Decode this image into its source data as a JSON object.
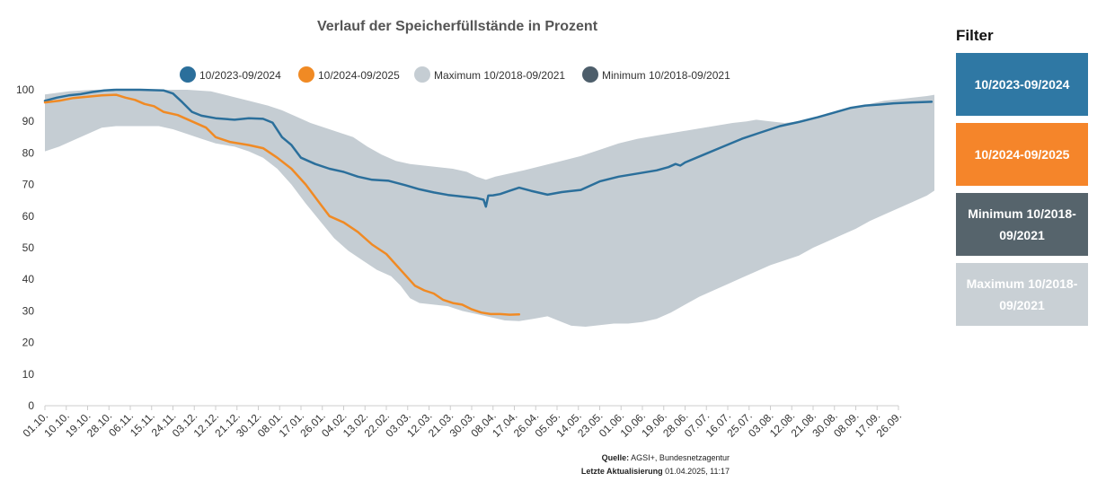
{
  "chart_data": {
    "type": "line",
    "title": "Verlauf der Speicherfüllstände in Prozent",
    "ylim": [
      0,
      100
    ],
    "yticks": [
      0,
      10,
      20,
      30,
      40,
      50,
      60,
      70,
      80,
      90,
      100
    ],
    "x_tick_labels": [
      "01.10.",
      "10.10.",
      "19.10.",
      "28.10.",
      "06.11.",
      "15.11.",
      "24.11.",
      "03.12.",
      "12.12.",
      "21.12.",
      "30.12.",
      "08.01.",
      "17.01.",
      "26.01.",
      "04.02.",
      "13.02.",
      "22.02.",
      "03.03.",
      "12.03.",
      "21.03.",
      "30.03.",
      "08.04.",
      "17.04.",
      "26.04.",
      "05.05.",
      "14.05.",
      "23.05.",
      "01.06.",
      "10.06.",
      "19.06.",
      "28.06.",
      "07.07.",
      "16.07.",
      "25.07.",
      "03.08.",
      "12.08.",
      "21.08.",
      "30.08.",
      "08.09.",
      "17.09.",
      "26.09."
    ],
    "x_unit": "day of gas year (0 = 01.10.)",
    "legend_position": "top",
    "series": [
      {
        "name": "10/2023-09/2024",
        "color": "#2b6f9b",
        "style": "line",
        "points": [
          [
            0,
            96.5
          ],
          [
            5,
            97.5
          ],
          [
            10,
            98.2
          ],
          [
            15,
            98.6
          ],
          [
            20,
            99.3
          ],
          [
            25,
            99.8
          ],
          [
            30,
            100
          ],
          [
            40,
            100
          ],
          [
            50,
            99.8
          ],
          [
            54,
            98.8
          ],
          [
            58,
            96
          ],
          [
            62,
            93
          ],
          [
            66,
            91.8
          ],
          [
            72,
            91
          ],
          [
            80,
            90.5
          ],
          [
            86,
            91
          ],
          [
            92,
            90.8
          ],
          [
            96,
            89.6
          ],
          [
            100,
            85
          ],
          [
            104,
            82.5
          ],
          [
            108,
            78.5
          ],
          [
            114,
            76.5
          ],
          [
            120,
            75
          ],
          [
            126,
            74
          ],
          [
            132,
            72.5
          ],
          [
            138,
            71.5
          ],
          [
            145,
            71.2
          ],
          [
            152,
            69.8
          ],
          [
            158,
            68.5
          ],
          [
            164,
            67.5
          ],
          [
            170,
            66.7
          ],
          [
            176,
            66.2
          ],
          [
            182,
            65.7
          ],
          [
            185,
            65.2
          ],
          [
            186,
            63
          ],
          [
            187,
            66.5
          ],
          [
            189,
            66.6
          ],
          [
            192,
            67
          ],
          [
            196,
            68
          ],
          [
            200,
            69
          ],
          [
            205,
            68
          ],
          [
            212,
            66.8
          ],
          [
            218,
            67.6
          ],
          [
            226,
            68.3
          ],
          [
            234,
            71
          ],
          [
            242,
            72.5
          ],
          [
            250,
            73.5
          ],
          [
            258,
            74.5
          ],
          [
            263,
            75.5
          ],
          [
            266,
            76.5
          ],
          [
            268,
            76
          ],
          [
            270,
            77
          ],
          [
            278,
            79.5
          ],
          [
            286,
            82
          ],
          [
            294,
            84.5
          ],
          [
            302,
            86.5
          ],
          [
            310,
            88.5
          ],
          [
            318,
            89.8
          ],
          [
            326,
            91.3
          ],
          [
            334,
            93
          ],
          [
            340,
            94.3
          ],
          [
            346,
            95
          ],
          [
            352,
            95.3
          ],
          [
            358,
            95.7
          ],
          [
            366,
            96
          ],
          [
            374,
            96.2
          ]
        ]
      },
      {
        "name": "10/2024-09/2025",
        "color": "#f08a24",
        "style": "line",
        "points": [
          [
            0,
            96
          ],
          [
            6,
            96.5
          ],
          [
            12,
            97.4
          ],
          [
            18,
            97.8
          ],
          [
            24,
            98.2
          ],
          [
            30,
            98.4
          ],
          [
            34,
            97.5
          ],
          [
            38,
            96.8
          ],
          [
            42,
            95.5
          ],
          [
            46,
            94.8
          ],
          [
            50,
            93
          ],
          [
            56,
            92
          ],
          [
            62,
            90
          ],
          [
            68,
            88
          ],
          [
            72,
            85
          ],
          [
            78,
            83.5
          ],
          [
            86,
            82.5
          ],
          [
            92,
            81.5
          ],
          [
            98,
            78.5
          ],
          [
            104,
            75
          ],
          [
            110,
            70
          ],
          [
            116,
            64
          ],
          [
            120,
            60
          ],
          [
            126,
            58
          ],
          [
            132,
            55
          ],
          [
            138,
            51
          ],
          [
            144,
            48
          ],
          [
            150,
            43
          ],
          [
            156,
            38
          ],
          [
            160,
            36.5
          ],
          [
            164,
            35.5
          ],
          [
            168,
            33.5
          ],
          [
            172,
            32.5
          ],
          [
            176,
            32
          ],
          [
            180,
            30.5
          ],
          [
            184,
            29.5
          ],
          [
            188,
            29
          ],
          [
            192,
            29
          ],
          [
            196,
            28.8
          ],
          [
            200,
            28.9
          ]
        ]
      },
      {
        "name": "Maximum 10/2018-09/2021",
        "color": "#c5cdd3",
        "style": "area-upper",
        "points": [
          [
            0,
            98.5
          ],
          [
            10,
            99.5
          ],
          [
            20,
            100
          ],
          [
            60,
            100
          ],
          [
            70,
            99.5
          ],
          [
            78,
            98
          ],
          [
            86,
            96.5
          ],
          [
            94,
            95
          ],
          [
            100,
            93.5
          ],
          [
            106,
            91.5
          ],
          [
            112,
            89.5
          ],
          [
            118,
            88
          ],
          [
            124,
            86.5
          ],
          [
            130,
            85
          ],
          [
            136,
            82
          ],
          [
            142,
            79.5
          ],
          [
            148,
            77.5
          ],
          [
            154,
            76.5
          ],
          [
            160,
            76
          ],
          [
            166,
            75.5
          ],
          [
            172,
            75
          ],
          [
            178,
            74
          ],
          [
            182,
            72.5
          ],
          [
            186,
            71.5
          ],
          [
            190,
            72.5
          ],
          [
            196,
            73.5
          ],
          [
            202,
            74.5
          ],
          [
            210,
            76
          ],
          [
            218,
            77.5
          ],
          [
            226,
            79
          ],
          [
            234,
            81
          ],
          [
            242,
            83
          ],
          [
            250,
            84.5
          ],
          [
            258,
            85.5
          ],
          [
            266,
            86.5
          ],
          [
            274,
            87.5
          ],
          [
            282,
            88.5
          ],
          [
            290,
            89.5
          ],
          [
            296,
            90
          ],
          [
            300,
            90.5
          ],
          [
            306,
            90
          ],
          [
            312,
            89.5
          ],
          [
            318,
            90
          ],
          [
            324,
            91
          ],
          [
            330,
            92.5
          ],
          [
            336,
            93.5
          ],
          [
            342,
            94.5
          ],
          [
            348,
            95.5
          ],
          [
            354,
            96.5
          ],
          [
            360,
            97
          ],
          [
            366,
            97.5
          ],
          [
            372,
            98
          ],
          [
            376,
            98.5
          ]
        ]
      },
      {
        "name": "Minimum 10/2018-09/2021",
        "color": "#4d5e6b",
        "style": "area-lower",
        "points": [
          [
            0,
            80.5
          ],
          [
            6,
            82
          ],
          [
            12,
            84
          ],
          [
            18,
            86
          ],
          [
            24,
            88
          ],
          [
            30,
            88.5
          ],
          [
            36,
            88.5
          ],
          [
            42,
            88.5
          ],
          [
            48,
            88.5
          ],
          [
            54,
            87.5
          ],
          [
            60,
            86
          ],
          [
            66,
            84.5
          ],
          [
            72,
            83
          ],
          [
            80,
            82
          ],
          [
            86,
            80.5
          ],
          [
            92,
            78.5
          ],
          [
            98,
            75
          ],
          [
            104,
            70
          ],
          [
            110,
            64
          ],
          [
            116,
            58.5
          ],
          [
            122,
            53
          ],
          [
            128,
            49
          ],
          [
            134,
            46
          ],
          [
            140,
            43
          ],
          [
            146,
            41
          ],
          [
            150,
            38
          ],
          [
            154,
            34
          ],
          [
            158,
            32.5
          ],
          [
            164,
            32
          ],
          [
            170,
            31.5
          ],
          [
            176,
            30
          ],
          [
            182,
            29
          ],
          [
            188,
            28
          ],
          [
            194,
            27
          ],
          [
            200,
            26.8
          ],
          [
            206,
            27.5
          ],
          [
            212,
            28.3
          ],
          [
            218,
            26.5
          ],
          [
            222,
            25.3
          ],
          [
            228,
            25
          ],
          [
            234,
            25.5
          ],
          [
            240,
            26
          ],
          [
            246,
            26
          ],
          [
            252,
            26.5
          ],
          [
            258,
            27.5
          ],
          [
            264,
            29.5
          ],
          [
            270,
            32
          ],
          [
            276,
            34.5
          ],
          [
            282,
            36.5
          ],
          [
            288,
            38.5
          ],
          [
            294,
            40.5
          ],
          [
            300,
            42.5
          ],
          [
            306,
            44.5
          ],
          [
            312,
            46
          ],
          [
            318,
            47.5
          ],
          [
            324,
            50
          ],
          [
            330,
            52
          ],
          [
            336,
            54
          ],
          [
            342,
            56
          ],
          [
            348,
            58.5
          ],
          [
            354,
            60.5
          ],
          [
            360,
            62.5
          ],
          [
            366,
            64.5
          ],
          [
            372,
            66.5
          ],
          [
            376,
            68.5
          ]
        ]
      }
    ]
  },
  "footer": {
    "source_label": "Quelle:",
    "source_value": "AGSI+, Bundesnetzagentur",
    "update_label": "Letzte Aktualisierung",
    "update_value": "01.04.2025, 11:17"
  },
  "filter": {
    "title": "Filter",
    "buttons": [
      {
        "label": "10/2023-09/2024",
        "color": "#2f78a4"
      },
      {
        "label": "10/2024-09/2025",
        "color": "#f5852a"
      },
      {
        "label": "Minimum 10/2018-09/2021",
        "color": "#56646c"
      },
      {
        "label": "Maximum 10/2018-09/2021",
        "color": "#c9d0d5"
      }
    ]
  }
}
